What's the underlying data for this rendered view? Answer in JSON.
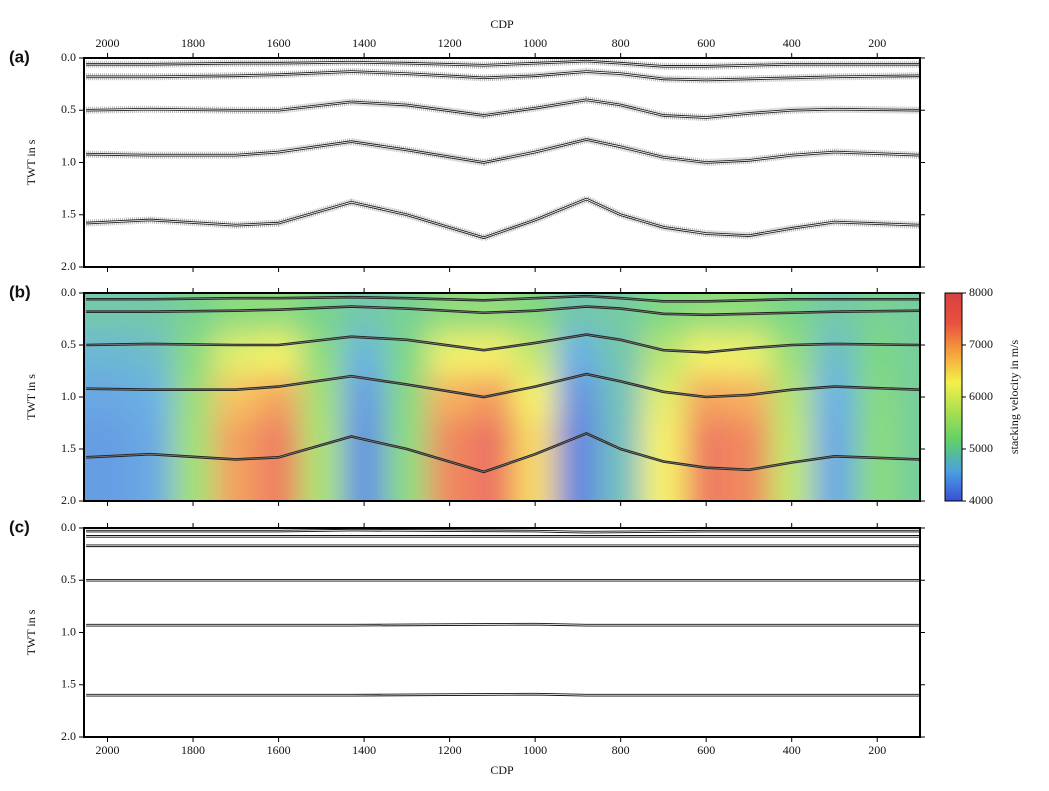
{
  "chart_data": [
    {
      "type": "line",
      "title": "(a)",
      "ylabel": "TWT in s",
      "xlabel": "CDP",
      "xaxis": "top",
      "reverse_y": true,
      "xlim": [
        2055,
        100
      ],
      "xticks": [
        2000,
        1800,
        1600,
        1400,
        1200,
        1000,
        800,
        600,
        400,
        200
      ],
      "ylim": [
        0,
        2
      ],
      "yticks": [
        {
          "value": 0,
          "label": "0.0"
        },
        0.5,
        {
          "value": 1,
          "label": "1.0"
        },
        1.5,
        {
          "value": 2,
          "label": "2.0"
        }
      ],
      "x": [
        2050,
        1900,
        1700,
        1600,
        1430,
        1300,
        1120,
        1000,
        880,
        800,
        700,
        600,
        500,
        400,
        300,
        100
      ],
      "series": [
        {
          "color": "#222222",
          "values": [
            0.06,
            0.06,
            0.05,
            0.05,
            0.04,
            0.05,
            0.07,
            0.05,
            0.03,
            0.05,
            0.08,
            0.08,
            0.07,
            0.06,
            0.06,
            0.06
          ]
        },
        {
          "color": "#222222",
          "values": [
            0.18,
            0.18,
            0.17,
            0.16,
            0.13,
            0.15,
            0.19,
            0.17,
            0.13,
            0.15,
            0.2,
            0.21,
            0.2,
            0.19,
            0.18,
            0.17
          ]
        },
        {
          "color": "#222222",
          "values": [
            0.5,
            0.49,
            0.5,
            0.5,
            0.42,
            0.45,
            0.55,
            0.48,
            0.4,
            0.45,
            0.55,
            0.57,
            0.53,
            0.5,
            0.49,
            0.5
          ]
        },
        {
          "color": "#222222",
          "values": [
            0.92,
            0.93,
            0.93,
            0.9,
            0.8,
            0.88,
            1.0,
            0.9,
            0.78,
            0.85,
            0.95,
            1.0,
            0.98,
            0.93,
            0.9,
            0.93
          ]
        },
        {
          "color": "#222222",
          "values": [
            1.58,
            1.55,
            1.6,
            1.58,
            1.38,
            1.5,
            1.72,
            1.55,
            1.35,
            1.5,
            1.62,
            1.68,
            1.7,
            1.63,
            1.57,
            1.6
          ]
        }
      ]
    },
    {
      "type": "heatmap",
      "title": "(b)",
      "ylabel": "TWT in s",
      "xaxis": "none",
      "reverse_y": true,
      "xlim": [
        2055,
        100
      ],
      "xticks": [
        2000,
        1800,
        1600,
        1400,
        1200,
        1000,
        800,
        600,
        400,
        200
      ],
      "ylim": [
        0,
        2
      ],
      "yticks": [
        {
          "value": 0,
          "label": "0.0"
        },
        0.5,
        {
          "value": 1,
          "label": "1.0"
        },
        1.5,
        {
          "value": 2,
          "label": "2.0"
        }
      ],
      "grid_x": [
        2000,
        1900,
        1800,
        1700,
        1600,
        1500,
        1400,
        1300,
        1200,
        1100,
        1000,
        900,
        800,
        700,
        600,
        500,
        400,
        300,
        200,
        100
      ],
      "grid_y": [
        0.2,
        0.6,
        1.0,
        1.4,
        1.8
      ],
      "z": [
        [
          4910,
          4925,
          5075,
          5300,
          5345,
          5090,
          4895,
          5045,
          5330,
          5360,
          5225,
          4880,
          4970,
          5195,
          5345,
          5330,
          5120,
          4925,
          5045,
          5000
        ],
        [
          4670,
          4725,
          5275,
          6100,
          6265,
          5330,
          4615,
          5165,
          6210,
          6320,
          5825,
          4560,
          4890,
          5715,
          6265,
          6210,
          5440,
          4725,
          5165,
          5000
        ],
        [
          4490,
          4575,
          5425,
          6700,
          6955,
          5510,
          4405,
          5255,
          6870,
          7040,
          6275,
          4320,
          4830,
          6105,
          6955,
          6870,
          5680,
          4575,
          5255,
          5000
        ],
        [
          4400,
          4500,
          5500,
          7000,
          7300,
          5600,
          4300,
          5300,
          7200,
          7400,
          6500,
          4200,
          4800,
          6300,
          7300,
          7200,
          5800,
          4500,
          5300,
          5000
        ],
        [
          4400,
          4500,
          5500,
          7000,
          7300,
          5600,
          4300,
          5300,
          7200,
          7400,
          6500,
          4200,
          4800,
          6300,
          7300,
          7200,
          5800,
          4500,
          5300,
          5000
        ]
      ],
      "colormap": [
        "#3a4fd6",
        "#4aa0e0",
        "#5ecf6a",
        "#a8e050",
        "#f5f04a",
        "#f5a03c",
        "#e85040",
        "#d84040"
      ],
      "colorbar": {
        "label": "stacking velocity in m/s",
        "lim": [
          4000,
          8000
        ],
        "ticks": [
          4000,
          5000,
          6000,
          7000,
          8000
        ]
      },
      "x": [
        2050,
        1900,
        1700,
        1600,
        1430,
        1300,
        1120,
        1000,
        880,
        800,
        700,
        600,
        500,
        400,
        300,
        100
      ],
      "series": [
        {
          "color": "#222222",
          "values": [
            0.06,
            0.06,
            0.05,
            0.05,
            0.04,
            0.05,
            0.07,
            0.05,
            0.03,
            0.05,
            0.08,
            0.08,
            0.07,
            0.06,
            0.06,
            0.06
          ]
        },
        {
          "color": "#222222",
          "values": [
            0.18,
            0.18,
            0.17,
            0.16,
            0.13,
            0.15,
            0.19,
            0.17,
            0.13,
            0.15,
            0.2,
            0.21,
            0.2,
            0.19,
            0.18,
            0.17
          ]
        },
        {
          "color": "#222222",
          "values": [
            0.5,
            0.49,
            0.5,
            0.5,
            0.42,
            0.45,
            0.55,
            0.48,
            0.4,
            0.45,
            0.55,
            0.57,
            0.53,
            0.5,
            0.49,
            0.5
          ]
        },
        {
          "color": "#222222",
          "values": [
            0.92,
            0.93,
            0.93,
            0.9,
            0.8,
            0.88,
            1.0,
            0.9,
            0.78,
            0.85,
            0.95,
            1.0,
            0.98,
            0.93,
            0.9,
            0.93
          ]
        },
        {
          "color": "#222222",
          "values": [
            1.58,
            1.55,
            1.6,
            1.58,
            1.38,
            1.5,
            1.72,
            1.55,
            1.35,
            1.5,
            1.62,
            1.68,
            1.7,
            1.63,
            1.57,
            1.6
          ]
        }
      ]
    },
    {
      "type": "line",
      "title": "(c)",
      "ylabel": "TWT in s",
      "xlabel": "CDP",
      "xaxis": "bottom",
      "reverse_y": true,
      "xlim": [
        2055,
        100
      ],
      "xticks": [
        2000,
        1800,
        1600,
        1400,
        1200,
        1000,
        800,
        600,
        400,
        200
      ],
      "ylim": [
        0,
        2
      ],
      "yticks": [
        {
          "value": 0,
          "label": "0.0"
        },
        0.5,
        {
          "value": 1,
          "label": "1.0"
        },
        1.5,
        {
          "value": 2,
          "label": "2.0"
        }
      ],
      "x": [
        2050,
        1600,
        1430,
        1000,
        880,
        600,
        300,
        100
      ],
      "series": [
        {
          "color": "#111111",
          "values": [
            0.03,
            0.03,
            0.02,
            0.03,
            0.04,
            0.03,
            0.03,
            0.03
          ]
        },
        {
          "color": "#111111",
          "values": [
            0.08,
            0.08,
            0.08,
            0.08,
            0.08,
            0.08,
            0.08,
            0.08
          ]
        },
        {
          "color": "#111111",
          "values": [
            0.17,
            0.17,
            0.17,
            0.17,
            0.17,
            0.17,
            0.17,
            0.17
          ]
        },
        {
          "color": "#111111",
          "values": [
            0.5,
            0.5,
            0.5,
            0.5,
            0.5,
            0.5,
            0.5,
            0.5
          ]
        },
        {
          "color": "#111111",
          "values": [
            0.93,
            0.93,
            0.93,
            0.92,
            0.93,
            0.93,
            0.93,
            0.93
          ]
        },
        {
          "color": "#111111",
          "values": [
            1.6,
            1.6,
            1.6,
            1.59,
            1.6,
            1.6,
            1.6,
            1.6
          ]
        }
      ]
    }
  ]
}
